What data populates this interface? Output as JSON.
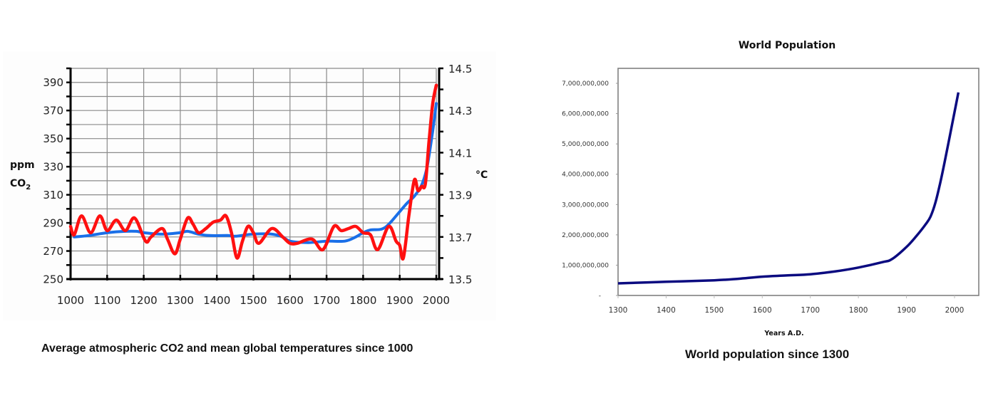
{
  "chart_data": [
    {
      "type": "line",
      "title": "",
      "caption": "Average atmospheric CO2 and mean global temperatures since 1000",
      "xlabel": "",
      "ylabel_left": "ppm",
      "ylabel_left_sub": "CO",
      "ylabel_left_subscript": "2",
      "ylabel_right": "°C",
      "xlim": [
        1000,
        2000
      ],
      "ylim_left": [
        250,
        400
      ],
      "ylim_right": [
        13.5,
        14.5
      ],
      "grid": true,
      "x_ticks": [
        "1000",
        "1100",
        "1200",
        "1300",
        "1400",
        "1500",
        "1600",
        "1700",
        "1800",
        "1900",
        "2000"
      ],
      "y_left_ticks": [
        "250",
        "270",
        "290",
        "310",
        "330",
        "350",
        "370",
        "390"
      ],
      "y_right_ticks": [
        "13.5",
        "13.7",
        "13.9",
        "14.1",
        "14.3",
        "14.5"
      ],
      "series": [
        {
          "name": "CO2 (ppm)",
          "axis": "left",
          "color": "#1a6fe8",
          "x": [
            1010,
            1050,
            1100,
            1150,
            1180,
            1200,
            1250,
            1300,
            1320,
            1350,
            1380,
            1430,
            1450,
            1500,
            1550,
            1580,
            1600,
            1650,
            1700,
            1750,
            1780,
            1800,
            1820,
            1850,
            1870,
            1900,
            1920,
            1940,
            1960,
            1975,
            1990,
            2000
          ],
          "values": [
            280,
            281,
            283,
            284,
            284,
            283,
            282,
            283,
            284,
            282,
            281,
            281,
            280.5,
            282,
            282,
            280,
            277,
            276,
            277,
            277,
            280,
            283,
            285,
            285.5,
            289,
            298,
            304,
            309,
            317,
            330,
            355,
            375
          ]
        },
        {
          "name": "Mean global temperature (°C)",
          "axis": "right",
          "color": "#ff1010",
          "x": [
            1000,
            1010,
            1030,
            1055,
            1080,
            1100,
            1125,
            1150,
            1175,
            1205,
            1220,
            1250,
            1265,
            1285,
            1300,
            1320,
            1335,
            1350,
            1370,
            1390,
            1410,
            1425,
            1440,
            1455,
            1470,
            1485,
            1500,
            1515,
            1550,
            1580,
            1600,
            1620,
            1660,
            1690,
            1720,
            1740,
            1760,
            1780,
            1800,
            1820,
            1840,
            1870,
            1890,
            1900,
            1910,
            1925,
            1940,
            1950,
            1960,
            1970,
            1980,
            1990,
            2000
          ],
          "values": [
            13.75,
            13.71,
            13.8,
            13.72,
            13.8,
            13.73,
            13.78,
            13.73,
            13.79,
            13.68,
            13.7,
            13.74,
            13.69,
            13.62,
            13.69,
            13.79,
            13.76,
            13.72,
            13.74,
            13.77,
            13.78,
            13.8,
            13.72,
            13.6,
            13.68,
            13.75,
            13.72,
            13.67,
            13.74,
            13.7,
            13.67,
            13.67,
            13.69,
            13.64,
            13.75,
            13.73,
            13.74,
            13.75,
            13.72,
            13.71,
            13.64,
            13.75,
            13.68,
            13.66,
            13.6,
            13.8,
            13.97,
            13.92,
            13.94,
            13.95,
            14.15,
            14.33,
            14.42
          ]
        }
      ]
    },
    {
      "type": "line",
      "title": "World Population",
      "caption": "World population since 1300",
      "xlabel": "Years A.D.",
      "ylabel": "",
      "xlim": [
        1300,
        2050
      ],
      "ylim": [
        0,
        7500000000
      ],
      "grid": false,
      "x_ticks": [
        "1300",
        "1400",
        "1500",
        "1600",
        "1700",
        "1800",
        "1900",
        "2000"
      ],
      "y_ticks": [
        "-",
        "1,000,000,000",
        "2,000,000,000",
        "3,000,000,000",
        "4,000,000,000",
        "5,000,000,000",
        "6,000,000,000",
        "7,000,000,000"
      ],
      "series": [
        {
          "name": "World population",
          "color": "#0b0b80",
          "x": [
            1300,
            1400,
            1500,
            1550,
            1600,
            1650,
            1700,
            1750,
            1800,
            1850,
            1870,
            1900,
            1920,
            1940,
            1950,
            1960,
            1970,
            1980,
            1990,
            2000,
            2008
          ],
          "values": [
            400000000,
            450000000,
            500000000,
            550000000,
            620000000,
            660000000,
            700000000,
            790000000,
            920000000,
            1100000000,
            1200000000,
            1600000000,
            1950000000,
            2350000000,
            2600000000,
            3050000000,
            3700000000,
            4450000000,
            5250000000,
            6050000000,
            6700000000
          ]
        }
      ]
    }
  ]
}
